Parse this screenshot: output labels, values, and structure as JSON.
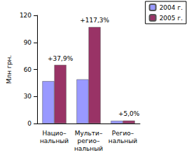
{
  "chart_data": {
    "type": "bar",
    "y_label": "Млн грн.",
    "categories": [
      "Нацио–\nнальный",
      "Мульти–\nрегио–\nнальный",
      "Регио–\nнальный"
    ],
    "series": [
      {
        "name": "2004 г.",
        "color": "#9999ff",
        "values": [
          47,
          49,
          3
        ]
      },
      {
        "name": "2005 г.",
        "color": "#993366",
        "values": [
          65,
          107,
          3.2
        ]
      }
    ],
    "annotations": [
      "+37,9%",
      "+117,3%",
      "+5,0%"
    ],
    "ylim": [
      0,
      120
    ],
    "yticks": [
      0,
      30,
      60,
      90,
      120
    ],
    "grid": false,
    "legend": "top-right"
  }
}
